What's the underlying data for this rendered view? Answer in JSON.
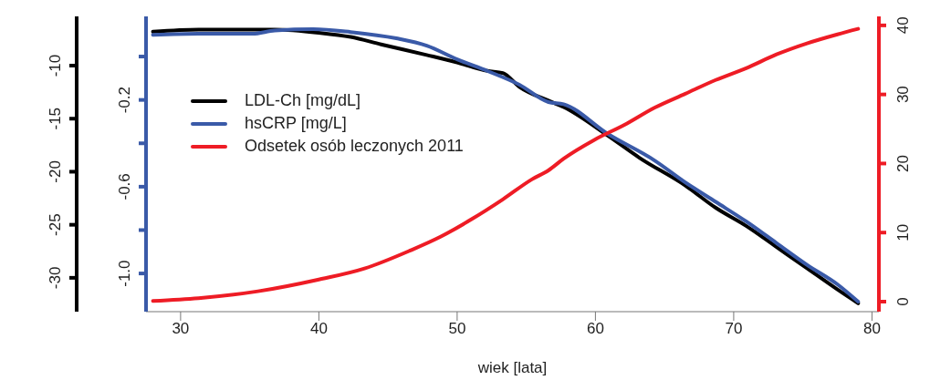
{
  "chart_data": {
    "type": "line",
    "xlabel": "wiek [lata]",
    "legend": "top left",
    "xlim": [
      27.5,
      80.5
    ],
    "xticks": [
      30,
      40,
      50,
      60,
      70,
      80
    ],
    "ylim": [
      -1.176,
      0.185
    ],
    "yticks": [
      {
        "value": 0,
        "label": null
      },
      -0.2,
      {
        "value": -0.4,
        "label": null
      },
      -0.6,
      {
        "value": -0.8,
        "label": null
      },
      {
        "value": -1.0,
        "label": "-1.0"
      }
    ],
    "y2lim": [
      -33.19,
      -5.36
    ],
    "y2ticks": [
      -10,
      -15,
      -20,
      -25,
      -30
    ],
    "y3lim": [
      -1.45,
      41.3
    ],
    "y3ticks": [
      0,
      10,
      20,
      30,
      40
    ],
    "series": [
      {
        "name": "LDL-Ch [mg/dL]",
        "color": "#000000",
        "axis": "y2",
        "x": [
          28,
          31.3,
          34.6,
          36.8,
          40.0,
          42.3,
          44.5,
          47.8,
          50.0,
          52.2,
          53.3,
          54.5,
          56.6,
          57.7,
          60.9,
          63.2,
          66.5,
          68.7,
          70.9,
          73.1,
          75.3,
          77.5,
          79.0
        ],
        "values": [
          -6.8,
          -6.6,
          -6.6,
          -6.6,
          -6.9,
          -7.3,
          -8.0,
          -9.0,
          -9.7,
          -10.5,
          -10.7,
          -12.0,
          -13.3,
          -13.9,
          -16.6,
          -18.7,
          -21.3,
          -23.4,
          -25.1,
          -27.1,
          -29.1,
          -31.1,
          -32.4
        ]
      },
      {
        "name": "hsCRP [mg/L]",
        "color": "#3a5aa8",
        "axis": "y",
        "x": [
          28,
          31.3,
          35.2,
          36.8,
          39.6,
          42.3,
          45.6,
          47.8,
          50.0,
          52.2,
          54.5,
          56.6,
          57.7,
          60.9,
          64.3,
          66.5,
          68.7,
          70.9,
          73.1,
          75.3,
          77.5,
          79.0
        ],
        "values": [
          0.1,
          0.105,
          0.105,
          0.12,
          0.126,
          0.113,
          0.084,
          0.05,
          -0.013,
          -0.067,
          -0.13,
          -0.21,
          -0.22,
          -0.357,
          -0.48,
          -0.58,
          -0.67,
          -0.76,
          -0.86,
          -0.96,
          -1.05,
          -1.13
        ]
      },
      {
        "name": "Odsetek osób leczonych 2011",
        "color": "#ee1c25",
        "axis": "y3",
        "x": [
          28,
          31.3,
          35.6,
          40.0,
          43.3,
          46.6,
          48.8,
          51.1,
          53.3,
          55.4,
          56.6,
          57.7,
          59.9,
          62.1,
          64.3,
          66.5,
          68.7,
          70.9,
          73.1,
          75.3,
          77.5,
          79.0
        ],
        "values": [
          0.1,
          0.5,
          1.5,
          3.2,
          4.8,
          7.4,
          9.4,
          12.0,
          14.8,
          17.7,
          19.0,
          20.7,
          23.4,
          25.6,
          28.1,
          30.1,
          32.1,
          33.8,
          35.8,
          37.4,
          38.7,
          39.5
        ]
      }
    ]
  }
}
